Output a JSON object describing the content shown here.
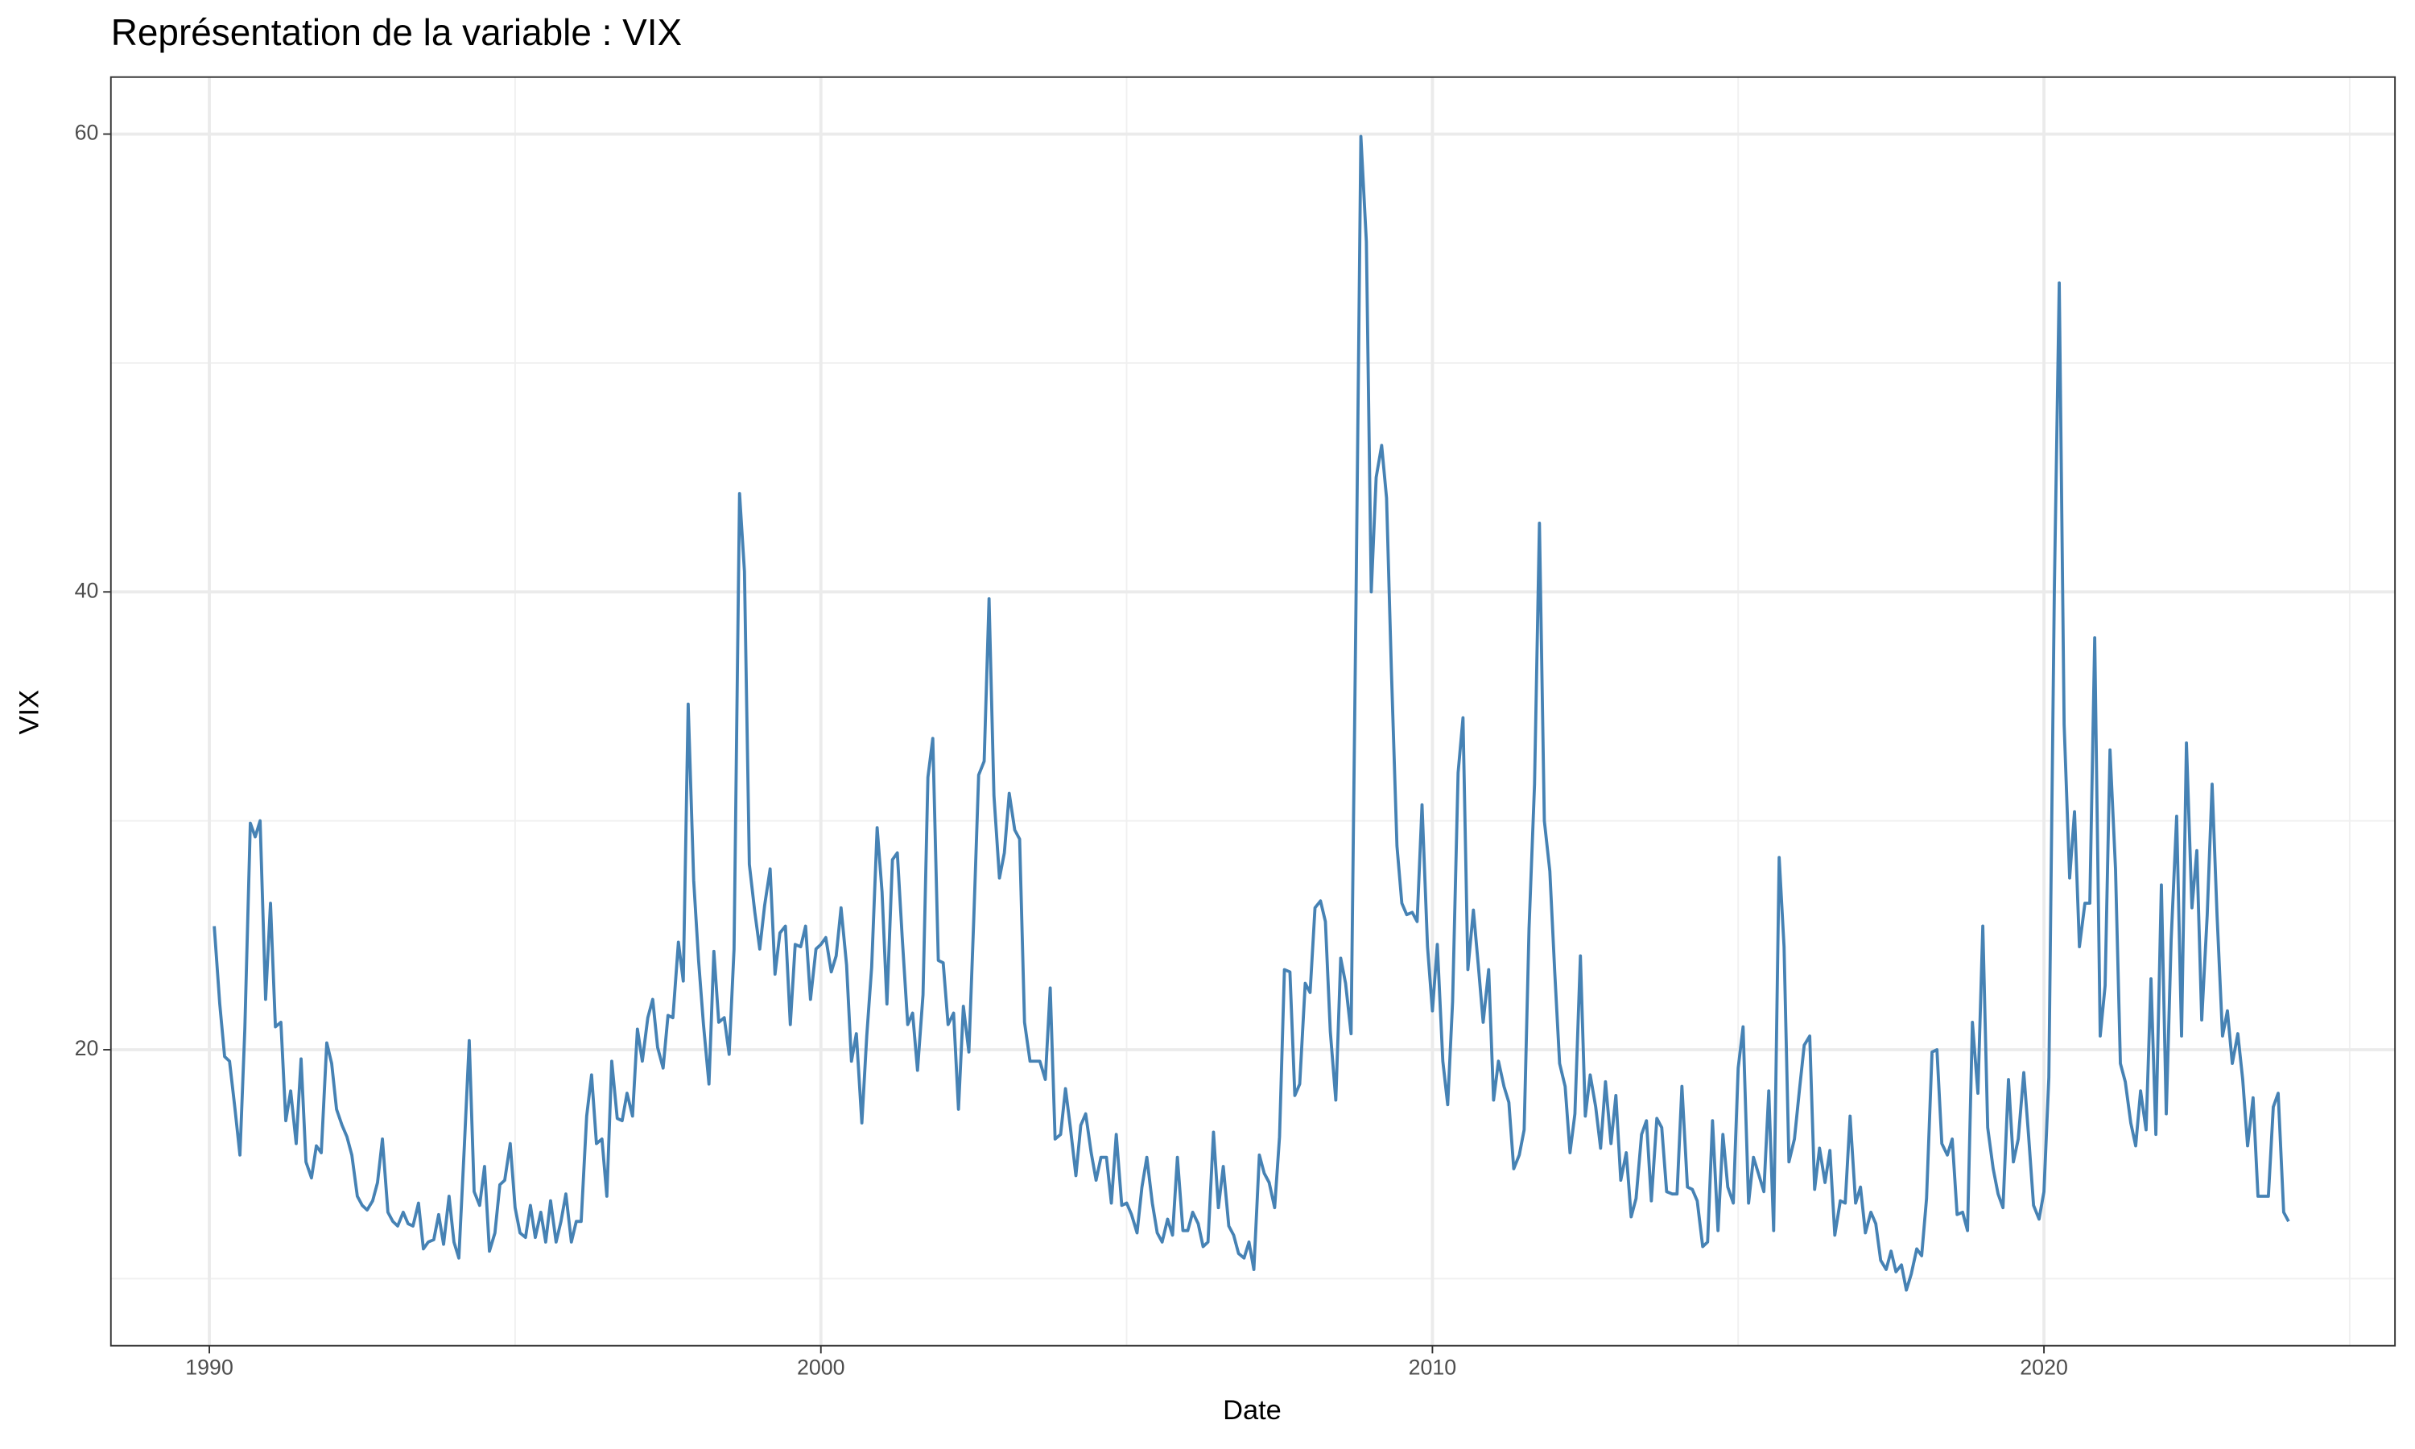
{
  "chart_data": {
    "type": "line",
    "title": "Représentation de la variable :  VIX",
    "x_label": "Date",
    "y_label": "VIX",
    "color": "#4682b4",
    "grid": true,
    "xlim": [
      1988.39,
      2025.74
    ],
    "ylim": [
      7.07,
      62.49
    ],
    "xticks": [
      1990,
      2000,
      2010,
      2020
    ],
    "yticks": [
      20,
      40,
      60
    ],
    "xminor_ticks": [
      1995,
      2005,
      2015,
      2025
    ],
    "yminor_ticks": [
      10,
      30,
      50
    ],
    "x": [
      1990.08,
      1990.17,
      1990.25,
      1990.33,
      1990.42,
      1990.5,
      1990.58,
      1990.67,
      1990.75,
      1990.83,
      1990.92,
      1991,
      1991.08,
      1991.17,
      1991.25,
      1991.33,
      1991.42,
      1991.5,
      1991.58,
      1991.67,
      1991.75,
      1991.83,
      1991.92,
      1992,
      1992.08,
      1992.17,
      1992.25,
      1992.33,
      1992.42,
      1992.5,
      1992.58,
      1992.67,
      1992.75,
      1992.83,
      1992.92,
      1993,
      1993.08,
      1993.17,
      1993.25,
      1993.33,
      1993.42,
      1993.5,
      1993.58,
      1993.67,
      1993.75,
      1993.83,
      1993.92,
      1994,
      1994.08,
      1994.17,
      1994.25,
      1994.33,
      1994.42,
      1994.5,
      1994.58,
      1994.67,
      1994.75,
      1994.83,
      1994.92,
      1995,
      1995.08,
      1995.17,
      1995.25,
      1995.33,
      1995.42,
      1995.5,
      1995.58,
      1995.67,
      1995.75,
      1995.83,
      1995.92,
      1996,
      1996.08,
      1996.17,
      1996.25,
      1996.33,
      1996.42,
      1996.5,
      1996.58,
      1996.67,
      1996.75,
      1996.83,
      1996.92,
      1997,
      1997.08,
      1997.17,
      1997.25,
      1997.33,
      1997.42,
      1997.5,
      1997.58,
      1997.67,
      1997.75,
      1997.83,
      1997.92,
      1998,
      1998.08,
      1998.17,
      1998.25,
      1998.33,
      1998.42,
      1998.5,
      1998.58,
      1998.67,
      1998.75,
      1998.83,
      1998.92,
      1999,
      1999.08,
      1999.17,
      1999.25,
      1999.33,
      1999.42,
      1999.5,
      1999.58,
      1999.67,
      1999.75,
      1999.83,
      1999.92,
      2000,
      2000.08,
      2000.17,
      2000.25,
      2000.33,
      2000.42,
      2000.5,
      2000.58,
      2000.67,
      2000.75,
      2000.83,
      2000.92,
      2001,
      2001.08,
      2001.17,
      2001.25,
      2001.33,
      2001.42,
      2001.5,
      2001.58,
      2001.67,
      2001.75,
      2001.83,
      2001.92,
      2002,
      2002.08,
      2002.17,
      2002.25,
      2002.33,
      2002.42,
      2002.5,
      2002.58,
      2002.67,
      2002.75,
      2002.83,
      2002.92,
      2003,
      2003.08,
      2003.17,
      2003.25,
      2003.33,
      2003.42,
      2003.5,
      2003.58,
      2003.67,
      2003.75,
      2003.83,
      2003.92,
      2004,
      2004.08,
      2004.17,
      2004.25,
      2004.33,
      2004.42,
      2004.5,
      2004.58,
      2004.67,
      2004.75,
      2004.83,
      2004.92,
      2005,
      2005.08,
      2005.17,
      2005.25,
      2005.33,
      2005.42,
      2005.5,
      2005.58,
      2005.67,
      2005.75,
      2005.83,
      2005.92,
      2006,
      2006.08,
      2006.17,
      2006.25,
      2006.33,
      2006.42,
      2006.5,
      2006.58,
      2006.67,
      2006.75,
      2006.83,
      2006.92,
      2007,
      2007.08,
      2007.17,
      2007.25,
      2007.33,
      2007.42,
      2007.5,
      2007.58,
      2007.67,
      2007.75,
      2007.83,
      2007.92,
      2008,
      2008.08,
      2008.17,
      2008.25,
      2008.33,
      2008.42,
      2008.5,
      2008.58,
      2008.67,
      2008.75,
      2008.83,
      2008.92,
      2009,
      2009.08,
      2009.17,
      2009.25,
      2009.33,
      2009.42,
      2009.5,
      2009.58,
      2009.67,
      2009.75,
      2009.83,
      2009.92,
      2010,
      2010.08,
      2010.17,
      2010.25,
      2010.33,
      2010.42,
      2010.5,
      2010.58,
      2010.67,
      2010.75,
      2010.83,
      2010.92,
      2011,
      2011.08,
      2011.17,
      2011.25,
      2011.33,
      2011.42,
      2011.5,
      2011.58,
      2011.67,
      2011.75,
      2011.83,
      2011.92,
      2012,
      2012.08,
      2012.17,
      2012.25,
      2012.33,
      2012.42,
      2012.5,
      2012.58,
      2012.67,
      2012.75,
      2012.83,
      2012.92,
      2013,
      2013.08,
      2013.17,
      2013.25,
      2013.33,
      2013.42,
      2013.5,
      2013.58,
      2013.67,
      2013.75,
      2013.83,
      2013.92,
      2014,
      2014.08,
      2014.17,
      2014.25,
      2014.33,
      2014.42,
      2014.5,
      2014.58,
      2014.67,
      2014.75,
      2014.83,
      2014.92,
      2015,
      2015.08,
      2015.17,
      2015.25,
      2015.33,
      2015.42,
      2015.5,
      2015.58,
      2015.67,
      2015.75,
      2015.83,
      2015.92,
      2016,
      2016.08,
      2016.17,
      2016.25,
      2016.33,
      2016.42,
      2016.5,
      2016.58,
      2016.67,
      2016.75,
      2016.83,
      2016.92,
      2017,
      2017.08,
      2017.17,
      2017.25,
      2017.33,
      2017.42,
      2017.5,
      2017.58,
      2017.67,
      2017.75,
      2017.83,
      2017.92,
      2018,
      2018.08,
      2018.17,
      2018.25,
      2018.33,
      2018.42,
      2018.5,
      2018.58,
      2018.67,
      2018.75,
      2018.83,
      2018.92,
      2019,
      2019.08,
      2019.17,
      2019.25,
      2019.33,
      2019.42,
      2019.5,
      2019.58,
      2019.67,
      2019.75,
      2019.83,
      2019.92,
      2020,
      2020.08,
      2020.17,
      2020.25,
      2020.33,
      2020.42,
      2020.5,
      2020.58,
      2020.67,
      2020.75,
      2020.83,
      2020.92,
      2021,
      2021.08,
      2021.17,
      2021.25,
      2021.33,
      2021.42,
      2021.5,
      2021.58,
      2021.67,
      2021.75,
      2021.83,
      2021.92,
      2022,
      2022.08,
      2022.17,
      2022.25,
      2022.33,
      2022.42,
      2022.5,
      2022.58,
      2022.67,
      2022.75,
      2022.83,
      2022.92,
      2023,
      2023.08,
      2023.17,
      2023.25,
      2023.33,
      2023.42,
      2023.5,
      2023.58,
      2023.67,
      2023.75,
      2023.83,
      2023.92,
      2024
    ],
    "values": [
      25.4,
      22,
      19.7,
      19.5,
      17.4,
      15.4,
      20.9,
      29.9,
      29.3,
      30.0,
      22.2,
      26.4,
      21.0,
      21.2,
      16.9,
      18.2,
      15.9,
      19.6,
      15.1,
      14.4,
      15.8,
      15.5,
      20.3,
      19.4,
      17.4,
      16.7,
      16.2,
      15.4,
      13.6,
      13.2,
      13.0,
      13.4,
      14.2,
      16.1,
      12.9,
      12.5,
      12.3,
      12.9,
      12.4,
      12.3,
      13.3,
      11.3,
      11.6,
      11.7,
      12.8,
      11.5,
      13.6,
      11.6,
      10.9,
      15.8,
      20.4,
      13.8,
      13.2,
      14.9,
      11.2,
      12.0,
      14.1,
      14.3,
      15.9,
      13.1,
      12.0,
      11.8,
      13.2,
      11.8,
      12.9,
      11.6,
      13.4,
      11.6,
      12.5,
      13.7,
      11.6,
      12.5,
      12.5,
      17.1,
      18.9,
      15.9,
      16.1,
      13.6,
      19.5,
      17.0,
      16.9,
      18.1,
      17.1,
      20.9,
      19.5,
      21.4,
      22.2,
      20.1,
      19.2,
      21.5,
      21.4,
      24.7,
      23.0,
      35.1,
      27.4,
      23.9,
      21.1,
      18.5,
      24.3,
      21.2,
      21.4,
      19.8,
      24.4,
      44.3,
      40.9,
      28.1,
      26.0,
      24.4,
      26.3,
      27.9,
      23.3,
      25.1,
      25.4,
      21.1,
      24.6,
      24.5,
      25.4,
      22.2,
      24.4,
      24.6,
      24.9,
      23.4,
      24.1,
      26.2,
      23.7,
      19.5,
      20.7,
      16.8,
      20.6,
      23.6,
      29.7,
      26.9,
      22.0,
      28.3,
      28.6,
      24.9,
      21.1,
      21.6,
      19.1,
      22.4,
      31.9,
      33.6,
      23.9,
      23.8,
      21.1,
      21.6,
      17.4,
      21.9,
      19.9,
      25.7,
      32.0,
      32.6,
      39.7,
      31.1,
      27.5,
      28.6,
      31.2,
      29.6,
      29.2,
      21.2,
      19.5,
      19.5,
      19.5,
      18.7,
      22.7,
      16.1,
      16.3,
      18.3,
      16.6,
      14.5,
      16.7,
      17.2,
      15.5,
      14.3,
      15.3,
      15.3,
      13.3,
      16.3,
      13.2,
      13.3,
      12.8,
      12.0,
      14.0,
      15.3,
      13.3,
      12.0,
      11.6,
      12.6,
      11.9,
      15.3,
      12.1,
      12.1,
      12.9,
      12.4,
      11.4,
      11.6,
      16.4,
      13.1,
      14.9,
      12.3,
      11.9,
      11.1,
      10.9,
      11.6,
      10.4,
      15.4,
      14.6,
      14.2,
      13.1,
      16.2,
      23.5,
      23.4,
      18.0,
      18.5,
      22.9,
      22.5,
      26.2,
      26.5,
      25.6,
      20.8,
      17.8,
      24.0,
      22.9,
      20.7,
      39.4,
      59.9,
      55.3,
      40.0,
      45.0,
      46.4,
      44.1,
      36.5,
      28.9,
      26.4,
      25.9,
      26.0,
      25.6,
      30.7,
      24.5,
      21.7,
      24.6,
      19.5,
      17.6,
      22.1,
      32.1,
      34.5,
      23.5,
      26.1,
      23.7,
      21.2,
      23.5,
      17.8,
      19.5,
      18.4,
      17.7,
      14.8,
      15.4,
      16.5,
      25.3,
      31.6,
      43.0,
      30.0,
      27.8,
      23.4,
      19.4,
      18.4,
      15.5,
      17.2,
      24.1,
      17.1,
      18.9,
      17.5,
      15.7,
      18.6,
      15.9,
      18.0,
      14.3,
      15.5,
      12.7,
      13.5,
      16.3,
      16.9,
      13.4,
      17.0,
      16.6,
      13.8,
      13.7,
      13.7,
      18.4,
      14.0,
      13.9,
      13.4,
      11.4,
      11.6,
      16.9,
      12.1,
      16.3,
      14.0,
      13.3,
      19.2,
      21.0,
      13.3,
      15.3,
      14.6,
      13.8,
      18.2,
      12.1,
      28.4,
      24.5,
      15.1,
      16.1,
      18.2,
      20.2,
      20.6,
      13.9,
      15.7,
      14.2,
      15.6,
      11.9,
      13.4,
      13.3,
      17.1,
      13.3,
      14.0,
      12.0,
      12.9,
      12.4,
      10.8,
      10.4,
      11.2,
      10.3,
      10.6,
      9.5,
      10.2,
      11.3,
      11.0,
      13.5,
      19.9,
      20.0,
      15.9,
      15.4,
      16.1,
      12.8,
      12.9,
      12.1,
      21.2,
      18.1,
      25.4,
      16.6,
      14.8,
      13.7,
      13.1,
      18.7,
      15.1,
      16.1,
      19.0,
      16.2,
      13.2,
      12.6,
      13.8,
      18.8,
      40.1,
      53.5,
      34.2,
      27.5,
      30.4,
      24.5,
      26.4,
      26.4,
      38.0,
      20.6,
      22.8,
      33.1,
      27.9,
      19.4,
      18.6,
      16.8,
      15.8,
      18.2,
      16.5,
      23.1,
      16.3,
      27.2,
      17.2,
      24.8,
      30.2,
      20.6,
      33.4,
      26.2,
      28.7,
      21.3,
      25.9,
      31.6,
      25.9,
      20.6,
      21.7,
      19.4,
      20.7,
      18.7,
      15.8,
      17.9,
      13.6,
      13.6,
      13.6,
      17.5,
      18.1,
      12.9,
      12.5
    ]
  }
}
